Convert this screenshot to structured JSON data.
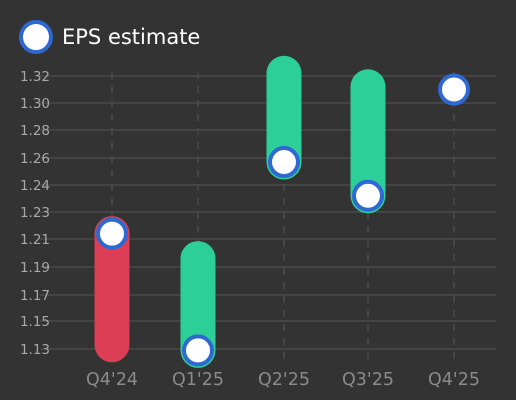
{
  "chart_data": {
    "type": "range",
    "legend": {
      "label": "EPS estimate",
      "position": "top-left"
    },
    "categories": [
      "Q4'24",
      "Q1'25",
      "Q2'25",
      "Q3'25",
      "Q4'25"
    ],
    "estimate": [
      1.214,
      1.129,
      1.257,
      1.236,
      1.31
    ],
    "bar_top": [
      1.214,
      1.196,
      1.322,
      1.312,
      null
    ],
    "bar_bottom": [
      1.133,
      1.129,
      1.257,
      1.236,
      null
    ],
    "direction": [
      "down",
      "up",
      "up",
      "up",
      null
    ],
    "yticks": [
      "1.13",
      "1.15",
      "1.17",
      "1.19",
      "1.21",
      "1.23",
      "1.24",
      "1.26",
      "1.28",
      "1.30",
      "1.32"
    ],
    "ylim": [
      1.13,
      1.32
    ],
    "grid": true,
    "colors": {
      "up": "#2dcf98",
      "down": "#dc3f55",
      "marker_stroke": "#2e68d0",
      "marker_fill": "#ffffff",
      "grid": "#4a4a4a",
      "background": "#333333"
    }
  }
}
